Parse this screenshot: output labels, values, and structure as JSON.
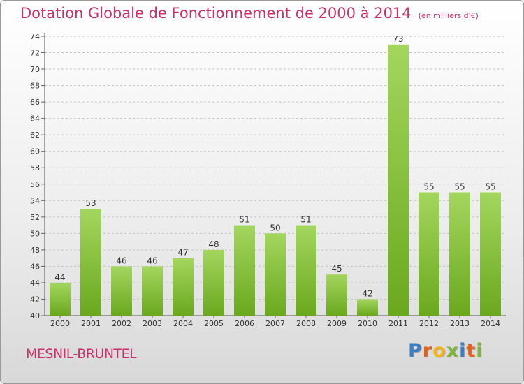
{
  "title": "Dotation Globale de Fonctionnement de 2000 à 2014",
  "unit": "(en milliers d'€)",
  "city": "MESNIL-BRUNTEL",
  "brand": "Proxiti",
  "colors": {
    "title": "#c8316a",
    "bar_light": "#a4d65e",
    "bar_dark": "#6aa81e",
    "brand": [
      "#3a7fc4",
      "#e2611d",
      "#f2b51c",
      "#7fb43a",
      "#3a7fc4",
      "#e2611d",
      "#7fb43a"
    ]
  },
  "chart_data": {
    "type": "bar",
    "categories": [
      "2000",
      "2001",
      "2002",
      "2003",
      "2004",
      "2005",
      "2006",
      "2007",
      "2008",
      "2009",
      "2010",
      "2011",
      "2012",
      "2013",
      "2014"
    ],
    "values": [
      44,
      53,
      46,
      46,
      47,
      48,
      51,
      50,
      51,
      45,
      42,
      73,
      55,
      55,
      55
    ],
    "ylim": [
      40,
      74
    ],
    "yticks": [
      40,
      42,
      44,
      46,
      48,
      50,
      52,
      54,
      56,
      58,
      60,
      62,
      64,
      66,
      68,
      70,
      72,
      74
    ],
    "grid": "horizontal dashed",
    "title": "Dotation Globale de Fonctionnement de 2000 à 2014"
  }
}
